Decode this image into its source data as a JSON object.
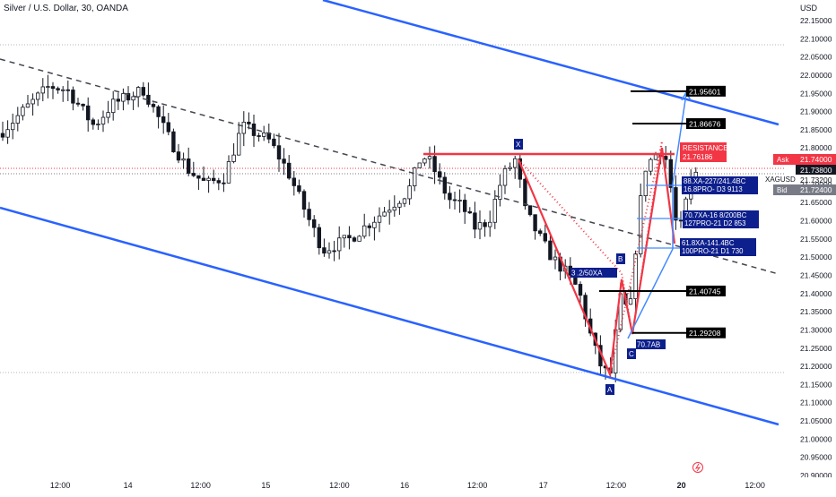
{
  "chart_data": {
    "type": "candlestick",
    "title": "Silver / U.S. Dollar, 30, OANDA",
    "y_axis": {
      "unit": "USD",
      "ticks": [
        "22.15000",
        "22.10000",
        "22.05000",
        "22.00000",
        "21.95000",
        "21.90000",
        "21.85000",
        "21.80000",
        "21.75000",
        "21.70000",
        "21.65000",
        "21.60000",
        "21.55000",
        "21.50000",
        "21.45000",
        "21.40000",
        "21.35000",
        "21.30000",
        "21.25000",
        "21.20000",
        "21.15000",
        "21.10000",
        "21.05000",
        "21.00000",
        "20.95000",
        "20.90000"
      ],
      "ylim": [
        20.9,
        22.15
      ]
    },
    "x_axis": {
      "ticks": [
        {
          "label": "12:00",
          "pos": 0.072
        },
        {
          "label": "14",
          "pos": 0.153
        },
        {
          "label": "12:00",
          "pos": 0.24
        },
        {
          "label": "15",
          "pos": 0.318
        },
        {
          "label": "12:00",
          "pos": 0.406
        },
        {
          "label": "16",
          "pos": 0.484
        },
        {
          "label": "12:00",
          "pos": 0.571
        },
        {
          "label": "17",
          "pos": 0.65
        },
        {
          "label": "12:00",
          "pos": 0.737
        },
        {
          "label": "20",
          "pos": 0.815
        },
        {
          "label": "12:00",
          "pos": 0.903
        }
      ]
    },
    "symbol": "XAGUSD",
    "ask": {
      "label": "Ask",
      "price": "21.74000"
    },
    "last_price": "21.73800",
    "last_small": "21.73200",
    "bid": {
      "label": "Bid",
      "price": "21.72400"
    },
    "price_levels": [
      {
        "label": "21.95601",
        "price": 21.956
      },
      {
        "label": "21.86676",
        "price": 21.867
      },
      {
        "label": "21.40745",
        "price": 21.407
      },
      {
        "label": "21.29208",
        "price": 21.292
      }
    ],
    "resistance": {
      "label": "RESISTANCE",
      "value": "21.76186",
      "price": 21.762
    },
    "pattern_points": [
      "X",
      "B",
      "C",
      "A"
    ],
    "pattern_labels": [
      "3",
      ".2/50XA",
      "70.7AB"
    ],
    "target_boxes": [
      {
        "line1": "88",
        "line1b": "XA-227/241.4BC",
        "line2": "16",
        "line2b": ".8PRO-",
        "line2c": "D3",
        "line2d": "9113"
      },
      {
        "line1": "7",
        "line1b": "0.7XA-16",
        "line1c": "8/200BC",
        "line2": "127PRO-21",
        "line2b": "D2",
        "line2c": "853"
      },
      {
        "line1": "61.8XA-141.4BC",
        "line2": "100PRO-21",
        "line2b": "D1",
        "line2c": "730"
      }
    ],
    "grid": false,
    "colors": {
      "up": "#089981",
      "down": "#f23645",
      "candle": "#131722",
      "channel": "#2962ff",
      "resistance": "#f23645",
      "label_bg": "#0d1f8c",
      "bid": "#787b86",
      "ask": "#f23645"
    }
  }
}
